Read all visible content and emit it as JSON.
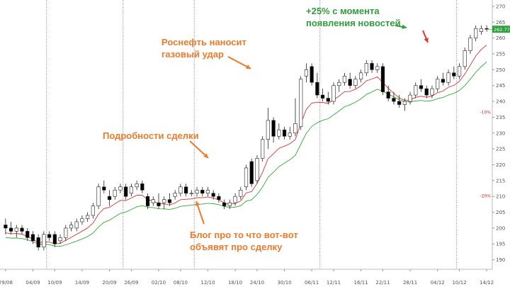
{
  "chart_data": {
    "type": "candlestick",
    "x_tick_labels": [
      "29/08",
      "04/09",
      "10/09",
      "14/09",
      "20/09",
      "26/09",
      "02/10",
      "08/10",
      "12/10",
      "18/10",
      "24/10",
      "30/10",
      "06/11",
      "12/11",
      "16/11",
      "22/11",
      "28/11",
      "04/12",
      "10/12",
      "14/12"
    ],
    "y_ticks": [
      190,
      195,
      200,
      205,
      210,
      215,
      220,
      225,
      230,
      235,
      240,
      245,
      250,
      255,
      260,
      265,
      270
    ],
    "ylim": [
      187,
      272
    ],
    "last_price": "262.77",
    "candles": [
      {
        "o": 201,
        "h": 203,
        "l": 198,
        "c": 200
      },
      {
        "o": 200,
        "h": 202,
        "l": 198,
        "c": 199
      },
      {
        "o": 199,
        "h": 201,
        "l": 197,
        "c": 200
      },
      {
        "o": 200,
        "h": 201,
        "l": 198,
        "c": 199
      },
      {
        "o": 199,
        "h": 200,
        "l": 196,
        "c": 197
      },
      {
        "o": 198,
        "h": 199,
        "l": 195,
        "c": 196
      },
      {
        "o": 197,
        "h": 198,
        "l": 193,
        "c": 194
      },
      {
        "o": 194,
        "h": 199,
        "l": 193,
        "c": 198
      },
      {
        "o": 198,
        "h": 199,
        "l": 196,
        "c": 197
      },
      {
        "o": 198,
        "h": 199,
        "l": 194,
        "c": 195
      },
      {
        "o": 196,
        "h": 198,
        "l": 195,
        "c": 197
      },
      {
        "o": 197,
        "h": 201,
        "l": 196,
        "c": 200
      },
      {
        "o": 200,
        "h": 202,
        "l": 199,
        "c": 201
      },
      {
        "o": 200,
        "h": 203,
        "l": 199,
        "c": 202
      },
      {
        "o": 202,
        "h": 204,
        "l": 201,
        "c": 203
      },
      {
        "o": 203,
        "h": 205,
        "l": 202,
        "c": 204
      },
      {
        "o": 204,
        "h": 208,
        "l": 203,
        "c": 207
      },
      {
        "o": 207,
        "h": 214,
        "l": 206,
        "c": 213
      },
      {
        "o": 213,
        "h": 215,
        "l": 211,
        "c": 212
      },
      {
        "o": 210,
        "h": 212,
        "l": 207,
        "c": 209
      },
      {
        "o": 210,
        "h": 213,
        "l": 209,
        "c": 212
      },
      {
        "o": 212,
        "h": 214,
        "l": 211,
        "c": 213
      },
      {
        "o": 213,
        "h": 214,
        "l": 209,
        "c": 210
      },
      {
        "o": 211,
        "h": 214,
        "l": 210,
        "c": 213
      },
      {
        "o": 213,
        "h": 215,
        "l": 212,
        "c": 214
      },
      {
        "o": 214,
        "h": 215,
        "l": 211,
        "c": 212
      },
      {
        "o": 210,
        "h": 211,
        "l": 206,
        "c": 207
      },
      {
        "o": 208,
        "h": 210,
        "l": 207,
        "c": 209
      },
      {
        "o": 208,
        "h": 211,
        "l": 206,
        "c": 207
      },
      {
        "o": 208,
        "h": 210,
        "l": 206,
        "c": 209
      },
      {
        "o": 209,
        "h": 211,
        "l": 207,
        "c": 208
      },
      {
        "o": 210,
        "h": 212,
        "l": 209,
        "c": 211
      },
      {
        "o": 211,
        "h": 214,
        "l": 210,
        "c": 213
      },
      {
        "o": 213,
        "h": 214,
        "l": 210,
        "c": 211
      },
      {
        "o": 211,
        "h": 212,
        "l": 210,
        "c": 211
      },
      {
        "o": 211,
        "h": 213,
        "l": 210,
        "c": 212
      },
      {
        "o": 212,
        "h": 213,
        "l": 210,
        "c": 211
      },
      {
        "o": 211,
        "h": 213,
        "l": 210,
        "c": 212
      },
      {
        "o": 211,
        "h": 212,
        "l": 209,
        "c": 210
      },
      {
        "o": 210,
        "h": 211,
        "l": 208,
        "c": 209
      },
      {
        "o": 208,
        "h": 209,
        "l": 206,
        "c": 207
      },
      {
        "o": 207,
        "h": 209,
        "l": 206,
        "c": 208
      },
      {
        "o": 208,
        "h": 211,
        "l": 207,
        "c": 210
      },
      {
        "o": 210,
        "h": 213,
        "l": 209,
        "c": 212
      },
      {
        "o": 213,
        "h": 220,
        "l": 212,
        "c": 219
      },
      {
        "o": 221,
        "h": 222,
        "l": 213,
        "c": 214
      },
      {
        "o": 215,
        "h": 223,
        "l": 214,
        "c": 222
      },
      {
        "o": 222,
        "h": 229,
        "l": 221,
        "c": 228
      },
      {
        "o": 228,
        "h": 238,
        "l": 225,
        "c": 234
      },
      {
        "o": 234,
        "h": 235,
        "l": 227,
        "c": 229
      },
      {
        "o": 229,
        "h": 233,
        "l": 228,
        "c": 231
      },
      {
        "o": 231,
        "h": 232,
        "l": 228,
        "c": 229
      },
      {
        "o": 229,
        "h": 232,
        "l": 228,
        "c": 230
      },
      {
        "o": 230,
        "h": 241,
        "l": 229,
        "c": 233
      },
      {
        "o": 232,
        "h": 248,
        "l": 231,
        "c": 247
      },
      {
        "o": 248,
        "h": 252,
        "l": 246,
        "c": 250
      },
      {
        "o": 251,
        "h": 252,
        "l": 245,
        "c": 246
      },
      {
        "o": 246,
        "h": 249,
        "l": 241,
        "c": 242
      },
      {
        "o": 242,
        "h": 244,
        "l": 240,
        "c": 241
      },
      {
        "o": 241,
        "h": 243,
        "l": 239,
        "c": 240
      },
      {
        "o": 240,
        "h": 246,
        "l": 239,
        "c": 245
      },
      {
        "o": 245,
        "h": 247,
        "l": 243,
        "c": 246
      },
      {
        "o": 246,
        "h": 249,
        "l": 245,
        "c": 248
      },
      {
        "o": 247,
        "h": 249,
        "l": 244,
        "c": 245
      },
      {
        "o": 245,
        "h": 248,
        "l": 244,
        "c": 247
      },
      {
        "o": 247,
        "h": 250,
        "l": 246,
        "c": 249
      },
      {
        "o": 249,
        "h": 253,
        "l": 248,
        "c": 252
      },
      {
        "o": 252,
        "h": 253,
        "l": 249,
        "c": 250
      },
      {
        "o": 250,
        "h": 252,
        "l": 249,
        "c": 251
      },
      {
        "o": 251,
        "h": 252,
        "l": 242,
        "c": 243
      },
      {
        "o": 243,
        "h": 245,
        "l": 240,
        "c": 241
      },
      {
        "o": 241,
        "h": 243,
        "l": 239,
        "c": 240
      },
      {
        "o": 240,
        "h": 242,
        "l": 238,
        "c": 239
      },
      {
        "o": 239,
        "h": 241,
        "l": 237,
        "c": 240
      },
      {
        "o": 240,
        "h": 243,
        "l": 239,
        "c": 242
      },
      {
        "o": 242,
        "h": 246,
        "l": 241,
        "c": 245
      },
      {
        "o": 245,
        "h": 247,
        "l": 243,
        "c": 244
      },
      {
        "o": 244,
        "h": 245,
        "l": 241,
        "c": 242
      },
      {
        "o": 242,
        "h": 245,
        "l": 241,
        "c": 244
      },
      {
        "o": 244,
        "h": 248,
        "l": 243,
        "c": 247
      },
      {
        "o": 247,
        "h": 249,
        "l": 245,
        "c": 246
      },
      {
        "o": 246,
        "h": 250,
        "l": 245,
        "c": 249
      },
      {
        "o": 249,
        "h": 251,
        "l": 247,
        "c": 248
      },
      {
        "o": 248,
        "h": 252,
        "l": 247,
        "c": 251
      },
      {
        "o": 251,
        "h": 257,
        "l": 250,
        "c": 256
      },
      {
        "o": 256,
        "h": 261,
        "l": 255,
        "c": 260
      },
      {
        "o": 260,
        "h": 264,
        "l": 259,
        "c": 263
      },
      {
        "o": 262,
        "h": 264,
        "l": 261,
        "c": 263
      },
      {
        "o": 263,
        "h": 264,
        "l": 262,
        "c": 262.77
      }
    ],
    "horizontal_levels": [
      {
        "label": "-10%",
        "value": 236.5
      },
      {
        "label": "-20%",
        "value": 210.2
      }
    ],
    "annotations": [
      {
        "id": "news",
        "lines": [
          "+25% с момента",
          "появления новостей"
        ],
        "color": "#2e9e3e",
        "x_index": 79,
        "y_value": 267
      },
      {
        "id": "rosneft",
        "lines": [
          "Роснефть наносит",
          "газовый удар"
        ],
        "color": "#ee7a2a",
        "x_index": 47,
        "y_value": 257
      },
      {
        "id": "deal",
        "lines": [
          "Подробности сделки"
        ],
        "color": "#ee7a2a",
        "x_index": 29,
        "y_value": 226
      },
      {
        "id": "blog",
        "lines": [
          "Блог про то что вот-вот",
          "объявят про сделку"
        ],
        "color": "#ee7a2a",
        "x_index": 31,
        "y_value": 200
      }
    ],
    "series_colors": {
      "up": "#ffffff",
      "down": "#000000",
      "ma_fast": "#dd3333",
      "ma_slow": "#33aa33",
      "price_tag": "#2e9e3e"
    }
  }
}
